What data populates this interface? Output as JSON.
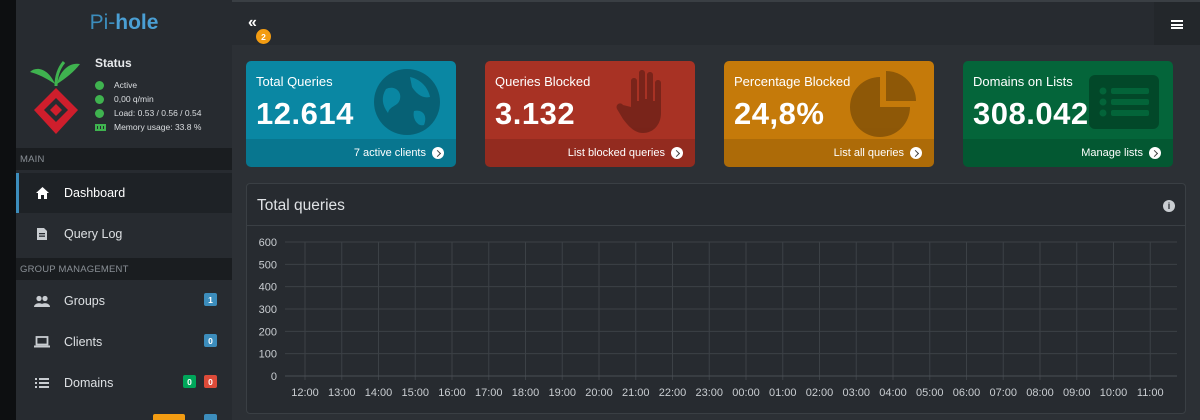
{
  "brand": {
    "prefix": "Pi-",
    "name": "hole"
  },
  "status": {
    "title": "Status",
    "active": "Active",
    "rate": "0,00 q/min",
    "load": "Load: 0.53 / 0.56 / 0.54",
    "memory": "Memory usage: 33.8 %"
  },
  "sidebar": {
    "main_header": "MAIN",
    "group_header": "GROUP MANAGEMENT",
    "items": [
      {
        "label": "Dashboard",
        "icon": "home-icon"
      },
      {
        "label": "Query Log",
        "icon": "document-icon"
      },
      {
        "label": "Groups",
        "icon": "users-icon",
        "badge": "1"
      },
      {
        "label": "Clients",
        "icon": "laptop-icon",
        "badge": "0"
      },
      {
        "label": "Domains",
        "icon": "list-icon",
        "badge_allowed": "0",
        "badge_denied": "0"
      }
    ]
  },
  "header": {
    "collapse_icon": "double-chevron-left-icon",
    "notification_count": "2",
    "menu_icon": "hamburger-icon"
  },
  "tiles": [
    {
      "title": "Total Queries",
      "value": "12.614",
      "footer": "7 active clients",
      "icon": "globe-icon",
      "color": "#0a87a3"
    },
    {
      "title": "Queries Blocked",
      "value": "3.132",
      "footer": "List blocked queries",
      "icon": "hand-icon",
      "color": "#a83224"
    },
    {
      "title": "Percentage Blocked",
      "value": "24,8%",
      "footer": "List all queries",
      "icon": "pie-chart-icon",
      "color": "#c57a0a"
    },
    {
      "title": "Domains on Lists",
      "value": "308.042",
      "footer": "Manage lists",
      "icon": "list-card-icon",
      "color": "#04653a"
    }
  ],
  "chart_data": {
    "type": "bar",
    "title": "Total queries",
    "stacked": true,
    "ylim": [
      0,
      600
    ],
    "yticks": [
      0,
      100,
      200,
      300,
      400,
      500,
      600
    ],
    "xtick_labels": [
      "12:00",
      "13:00",
      "14:00",
      "15:00",
      "16:00",
      "17:00",
      "18:00",
      "19:00",
      "20:00",
      "21:00",
      "22:00",
      "23:00",
      "00:00",
      "01:00",
      "02:00",
      "03:00",
      "04:00",
      "05:00",
      "06:00",
      "07:00",
      "08:00",
      "09:00",
      "10:00",
      "11:00"
    ],
    "grid": true,
    "series": [
      {
        "color": "#8b1f16",
        "values": [
          0,
          0,
          0,
          0,
          0,
          0,
          0,
          0,
          0,
          0,
          0,
          0,
          0,
          0,
          0,
          0,
          0,
          0,
          0,
          0,
          0,
          0,
          0,
          0,
          0,
          0,
          0,
          0,
          0,
          0,
          0,
          0,
          0,
          0,
          0,
          0,
          0,
          0,
          0,
          0,
          0,
          0,
          0,
          0,
          0,
          0,
          0,
          0,
          0,
          0,
          0,
          0,
          0,
          0,
          0,
          0,
          0,
          0,
          0,
          0,
          0,
          0,
          0,
          0,
          0,
          0,
          0,
          0,
          0,
          0,
          0,
          0,
          0,
          0,
          0,
          0,
          0,
          0,
          0,
          0,
          0,
          0,
          0,
          0,
          0,
          0,
          0,
          0,
          0,
          0,
          0,
          0,
          0,
          0,
          0,
          0,
          0,
          0,
          0,
          0,
          0,
          0,
          0,
          0,
          0,
          0,
          0,
          0,
          0,
          0,
          0,
          0,
          0,
          0,
          0,
          0,
          0,
          0,
          0,
          0,
          0,
          0,
          0,
          0,
          0,
          0,
          0,
          0,
          0,
          0,
          0,
          0,
          0,
          0,
          0,
          0,
          0,
          0,
          0,
          0,
          0,
          0,
          0,
          0,
          0,
          0,
          0,
          0,
          0,
          0,
          0,
          0,
          0,
          0,
          0,
          0,
          0,
          0,
          0,
          0,
          0,
          0,
          0,
          0,
          0,
          0,
          0,
          0,
          0,
          0,
          0,
          0,
          0,
          0,
          0,
          0,
          0,
          0,
          0,
          0,
          0,
          0,
          0,
          0,
          0,
          0,
          0,
          0,
          0,
          0,
          0,
          0,
          0,
          0,
          0,
          0,
          0,
          0,
          0,
          0,
          0,
          0,
          0,
          0,
          0,
          0,
          0,
          0,
          0,
          0,
          0,
          0,
          0,
          0,
          0,
          0,
          0,
          0,
          0,
          0,
          0,
          0,
          0,
          0,
          0,
          0,
          0,
          0,
          0,
          0,
          0,
          0,
          0,
          0,
          0,
          0,
          0,
          0,
          0,
          0,
          0,
          0,
          0,
          0,
          0,
          0,
          0,
          0,
          0,
          0,
          0,
          0,
          0,
          0,
          0,
          0,
          0,
          0,
          0,
          0,
          0,
          0,
          0,
          0,
          0,
          0,
          0,
          0,
          0,
          0,
          0,
          0,
          0,
          0,
          0,
          0,
          0,
          0,
          0,
          0,
          0,
          0,
          0,
          0,
          0,
          0,
          0,
          0,
          0,
          0,
          0,
          0,
          0,
          0
        ]
      }
    ]
  }
}
